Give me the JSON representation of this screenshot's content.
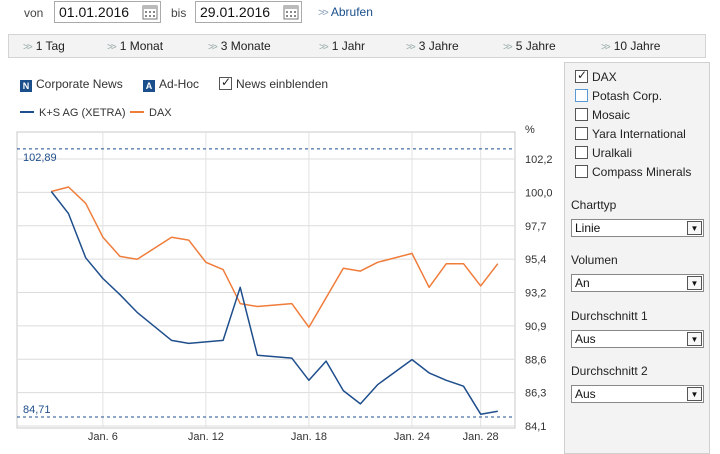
{
  "dates": {
    "from_label": "von",
    "from_value": "01.01.2016",
    "to_label": "bis",
    "to_value": "29.01.2016",
    "fetch_label": "Abrufen"
  },
  "ranges": [
    "1 Tag",
    "1 Monat",
    "3 Monate",
    "1 Jahr",
    "3 Jahre",
    "5 Jahre",
    "10 Jahre"
  ],
  "filters": {
    "corporate_news": "Corporate News",
    "ad_hoc": "Ad-Hoc",
    "news_toggle": "News einblenden",
    "news_checked": true
  },
  "comparisons": [
    {
      "label": "DAX",
      "checked": true,
      "style": "normal"
    },
    {
      "label": "Potash Corp.",
      "checked": false,
      "style": "blue"
    },
    {
      "label": "Mosaic",
      "checked": false,
      "style": "normal"
    },
    {
      "label": "Yara International",
      "checked": false,
      "style": "normal"
    },
    {
      "label": "Uralkali",
      "checked": false,
      "style": "normal"
    },
    {
      "label": "Compass Minerals",
      "checked": false,
      "style": "normal"
    }
  ],
  "settings": {
    "charttyp_label": "Charttyp",
    "charttyp_value": "Linie",
    "volumen_label": "Volumen",
    "volumen_value": "An",
    "durchschnitt1_label": "Durchschnitt 1",
    "durchschnitt1_value": "Aus",
    "durchschnitt2_label": "Durchschnitt 2",
    "durchschnitt2_value": "Aus"
  },
  "colors": {
    "ks": "#1f4e8c",
    "dax": "#f07c3a",
    "badge": "#1b4f8c"
  },
  "chart_data": {
    "type": "line",
    "y_unit": "%",
    "ylim": [
      84.1,
      102.2
    ],
    "yticks": [
      "102,2",
      "100,0",
      "97,7",
      "95,4",
      "93,2",
      "90,9",
      "88,6",
      "86,3",
      "84,1"
    ],
    "xlim": [
      1,
      30
    ],
    "x_tick_labels": [
      {
        "label": "Jan. 6",
        "day": 6
      },
      {
        "label": "Jan. 12",
        "day": 12
      },
      {
        "label": "Jan. 18",
        "day": 18
      },
      {
        "label": "Jan. 24",
        "day": 24
      },
      {
        "label": "Jan. 28",
        "day": 28
      }
    ],
    "high_label": "102,89",
    "high_value": 102.89,
    "low_label": "84,71",
    "low_value": 84.71,
    "series": [
      {
        "name": "K+S AG (XETRA)",
        "color": "#1f4e8c",
        "x": [
          3,
          4,
          5,
          6,
          7,
          8,
          10,
          11,
          12,
          13,
          14,
          15,
          17,
          18,
          19,
          20,
          21,
          22,
          24,
          25,
          26,
          27,
          28,
          29
        ],
        "y": [
          100.0,
          98.5,
          95.5,
          94.1,
          93.0,
          91.8,
          89.9,
          89.7,
          89.8,
          89.9,
          93.5,
          88.9,
          88.7,
          87.2,
          88.5,
          86.5,
          85.6,
          86.9,
          88.6,
          87.7,
          87.2,
          86.8,
          84.9,
          85.1
        ]
      },
      {
        "name": "DAX",
        "color": "#f07c3a",
        "x": [
          3,
          4,
          5,
          6,
          7,
          8,
          10,
          11,
          12,
          13,
          14,
          15,
          17,
          18,
          19,
          20,
          21,
          22,
          24,
          25,
          26,
          27,
          28,
          29
        ],
        "y": [
          100.0,
          100.3,
          99.2,
          96.9,
          95.6,
          95.4,
          96.9,
          96.7,
          95.2,
          94.7,
          92.4,
          92.2,
          92.4,
          90.8,
          92.8,
          94.8,
          94.6,
          95.2,
          95.8,
          93.5,
          95.1,
          95.1,
          93.6,
          95.1
        ]
      }
    ]
  }
}
